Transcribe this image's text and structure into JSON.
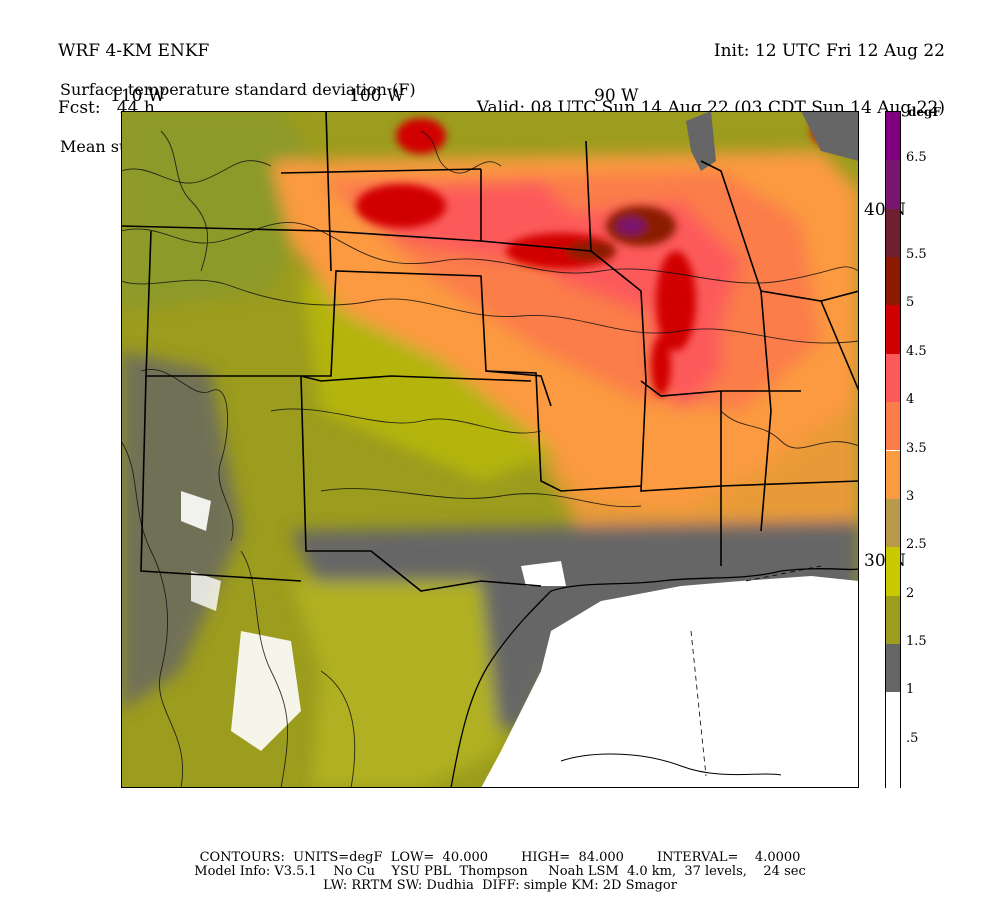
{
  "header": {
    "model": "WRF 4-KM ENKF",
    "fcst": "Fcst:   44 h",
    "init": "Init: 12 UTC Fri 12 Aug 22",
    "valid": "Valid: 08 UTC Sun 14 Aug 22 (03 CDT Sun 14 Aug 22)",
    "field1": "Surface temperature standard deviation (F)",
    "field2": "Mean surface temperature (F)"
  },
  "axes": {
    "lon_labels": [
      "110 W",
      "100 W",
      "90 W"
    ],
    "lat_labels": [
      "40 N",
      "30 N"
    ]
  },
  "colorbar": {
    "title": "degF",
    "ticks": [
      ".5",
      "1",
      "1.5",
      "2",
      "2.5",
      "3",
      "3.5",
      "4",
      "4.5",
      "5",
      "5.5",
      "6.5"
    ],
    "bins": [
      {
        "from": 0.0,
        "to": 0.5,
        "color": "#ffffff"
      },
      {
        "from": 0.5,
        "to": 1.0,
        "color": "#ffffff"
      },
      {
        "from": 1.0,
        "to": 1.5,
        "color": "#666666"
      },
      {
        "from": 1.5,
        "to": 2.0,
        "color": "#9c9c1e"
      },
      {
        "from": 2.0,
        "to": 2.5,
        "color": "#c9c900"
      },
      {
        "from": 2.5,
        "to": 3.0,
        "color": "#b99a4a"
      },
      {
        "from": 3.0,
        "to": 3.5,
        "color": "#fb9a40"
      },
      {
        "from": 3.5,
        "to": 4.0,
        "color": "#fb7d4a"
      },
      {
        "from": 4.0,
        "to": 4.5,
        "color": "#fc5a5a"
      },
      {
        "from": 4.5,
        "to": 5.0,
        "color": "#d10000"
      },
      {
        "from": 5.0,
        "to": 5.5,
        "color": "#8b1a00"
      },
      {
        "from": 5.5,
        "to": 6.0,
        "color": "#6e2030"
      },
      {
        "from": 6.0,
        "to": 6.5,
        "color": "#7a1670"
      },
      {
        "from": 6.5,
        "to": 7.0,
        "color": "#800080"
      }
    ]
  },
  "footer": {
    "line1": "CONTOURS:  UNITS=degF  LOW=  40.000        HIGH=  84.000        INTERVAL=    4.0000",
    "line2": "Model Info: V3.5.1    No Cu    YSU PBL  Thompson     Noah LSM  4.0 km,  37 levels,    24 sec",
    "line3": "LW: RRTM SW: Dudhia  DIFF: simple KM: 2D Smagor"
  }
}
